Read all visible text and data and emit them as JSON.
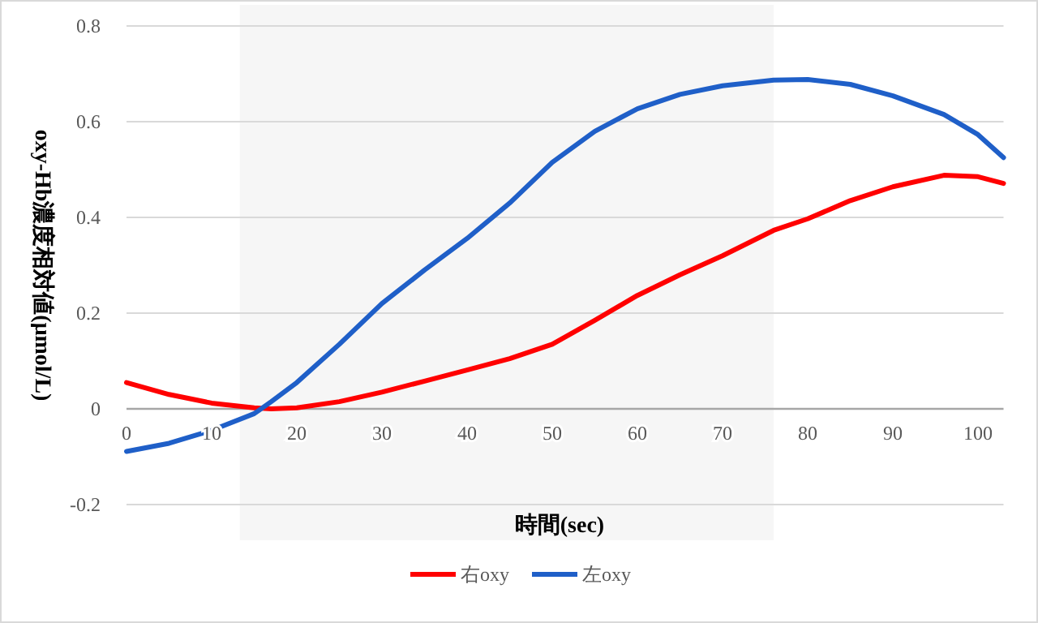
{
  "chart_data": {
    "type": "line",
    "xlabel": "時間(sec)",
    "ylabel": "oxy-Hb濃度相対値(μmol/L)",
    "x": [
      0,
      5,
      10,
      15,
      17,
      20,
      25,
      30,
      35,
      40,
      45,
      50,
      55,
      60,
      65,
      70,
      76,
      80,
      85,
      90,
      96,
      100,
      103
    ],
    "series": [
      {
        "name": "右oxy",
        "color": "#ff0000",
        "values": [
          0.055,
          0.03,
          0.012,
          0.002,
          0,
          0.002,
          0.015,
          0.035,
          0.058,
          0.081,
          0.105,
          0.135,
          0.185,
          0.237,
          0.28,
          0.32,
          0.373,
          0.397,
          0.435,
          0.464,
          0.488,
          0.485,
          0.471
        ]
      },
      {
        "name": "左oxy",
        "color": "#1f5fc8",
        "values": [
          -0.089,
          -0.072,
          -0.045,
          -0.01,
          0.015,
          0.055,
          0.135,
          0.22,
          0.29,
          0.356,
          0.43,
          0.515,
          0.58,
          0.627,
          0.657,
          0.675,
          0.687,
          0.688,
          0.678,
          0.654,
          0.615,
          0.573,
          0.525
        ]
      }
    ],
    "xlim": [
      0,
      103
    ],
    "ylim": [
      -0.2,
      0.8
    ],
    "xticks": [
      0,
      10,
      20,
      30,
      40,
      50,
      60,
      70,
      80,
      90,
      100
    ],
    "yticks": [
      {
        "value": -0.2,
        "label": "-0.2"
      },
      0,
      0.2,
      0.4,
      0.6,
      0.8
    ],
    "bands": [
      {
        "axis": "x",
        "from": 13.3,
        "to": 76,
        "color": "#f6f6f6"
      }
    ],
    "grid": "y",
    "legend": "bottom",
    "marker": "none",
    "line_style": "solid"
  }
}
